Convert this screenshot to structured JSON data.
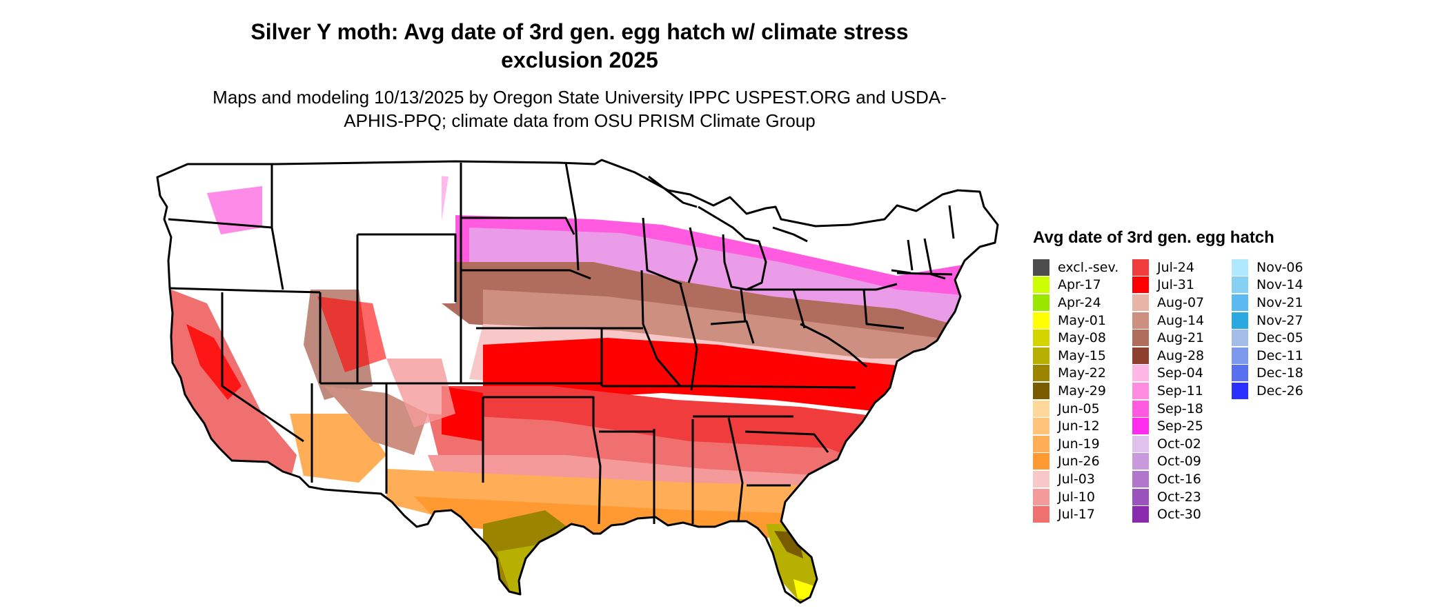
{
  "title": "Silver Y moth: Avg date of 3rd gen. egg hatch w/ climate stress exclusion 2025",
  "subtitle": "Maps and modeling 10/13/2025 by Oregon State University IPPC USPEST.ORG and USDA-APHIS-PPQ; climate data from OSU PRISM Climate Group",
  "legend": {
    "title": "Avg date of 3rd gen. egg hatch",
    "items": [
      {
        "label": "excl.-sev.",
        "color": "#4d4d4d"
      },
      {
        "label": "Apr-17",
        "color": "#ccff00"
      },
      {
        "label": "Apr-24",
        "color": "#99e600"
      },
      {
        "label": "May-01",
        "color": "#ffff00"
      },
      {
        "label": "May-08",
        "color": "#d4d400"
      },
      {
        "label": "May-15",
        "color": "#b8b000"
      },
      {
        "label": "May-22",
        "color": "#9a8400"
      },
      {
        "label": "May-29",
        "color": "#7a5c00"
      },
      {
        "label": "Jun-05",
        "color": "#ffd79a"
      },
      {
        "label": "Jun-12",
        "color": "#ffc47a"
      },
      {
        "label": "Jun-19",
        "color": "#ffad57"
      },
      {
        "label": "Jun-26",
        "color": "#ff9a33"
      },
      {
        "label": "Jul-03",
        "color": "#f8c8c8"
      },
      {
        "label": "Jul-10",
        "color": "#f49a9a"
      },
      {
        "label": "Jul-17",
        "color": "#f07070"
      },
      {
        "label": "Jul-24",
        "color": "#f03c3c"
      },
      {
        "label": "Jul-31",
        "color": "#ff0000"
      },
      {
        "label": "Aug-07",
        "color": "#e8b4a8"
      },
      {
        "label": "Aug-14",
        "color": "#cd9080"
      },
      {
        "label": "Aug-21",
        "color": "#b06c5c"
      },
      {
        "label": "Aug-28",
        "color": "#8f3f2e"
      },
      {
        "label": "Sep-04",
        "color": "#ffb8e6"
      },
      {
        "label": "Sep-11",
        "color": "#ff8ce0"
      },
      {
        "label": "Sep-18",
        "color": "#ff5ae0"
      },
      {
        "label": "Sep-25",
        "color": "#ff2cf0"
      },
      {
        "label": "Oct-02",
        "color": "#e0c0ec"
      },
      {
        "label": "Oct-09",
        "color": "#c89adc"
      },
      {
        "label": "Oct-16",
        "color": "#b077cc"
      },
      {
        "label": "Oct-23",
        "color": "#9a52bc"
      },
      {
        "label": "Oct-30",
        "color": "#8a2aae"
      },
      {
        "label": "Nov-06",
        "color": "#b0e8ff"
      },
      {
        "label": "Nov-14",
        "color": "#86d0f4"
      },
      {
        "label": "Nov-21",
        "color": "#5cbaf0"
      },
      {
        "label": "Nov-27",
        "color": "#2aa8e0"
      },
      {
        "label": "Dec-05",
        "color": "#a4bce8"
      },
      {
        "label": "Dec-11",
        "color": "#7c98ec"
      },
      {
        "label": "Dec-18",
        "color": "#5870f0"
      },
      {
        "label": "Dec-26",
        "color": "#2a30ff"
      }
    ]
  }
}
